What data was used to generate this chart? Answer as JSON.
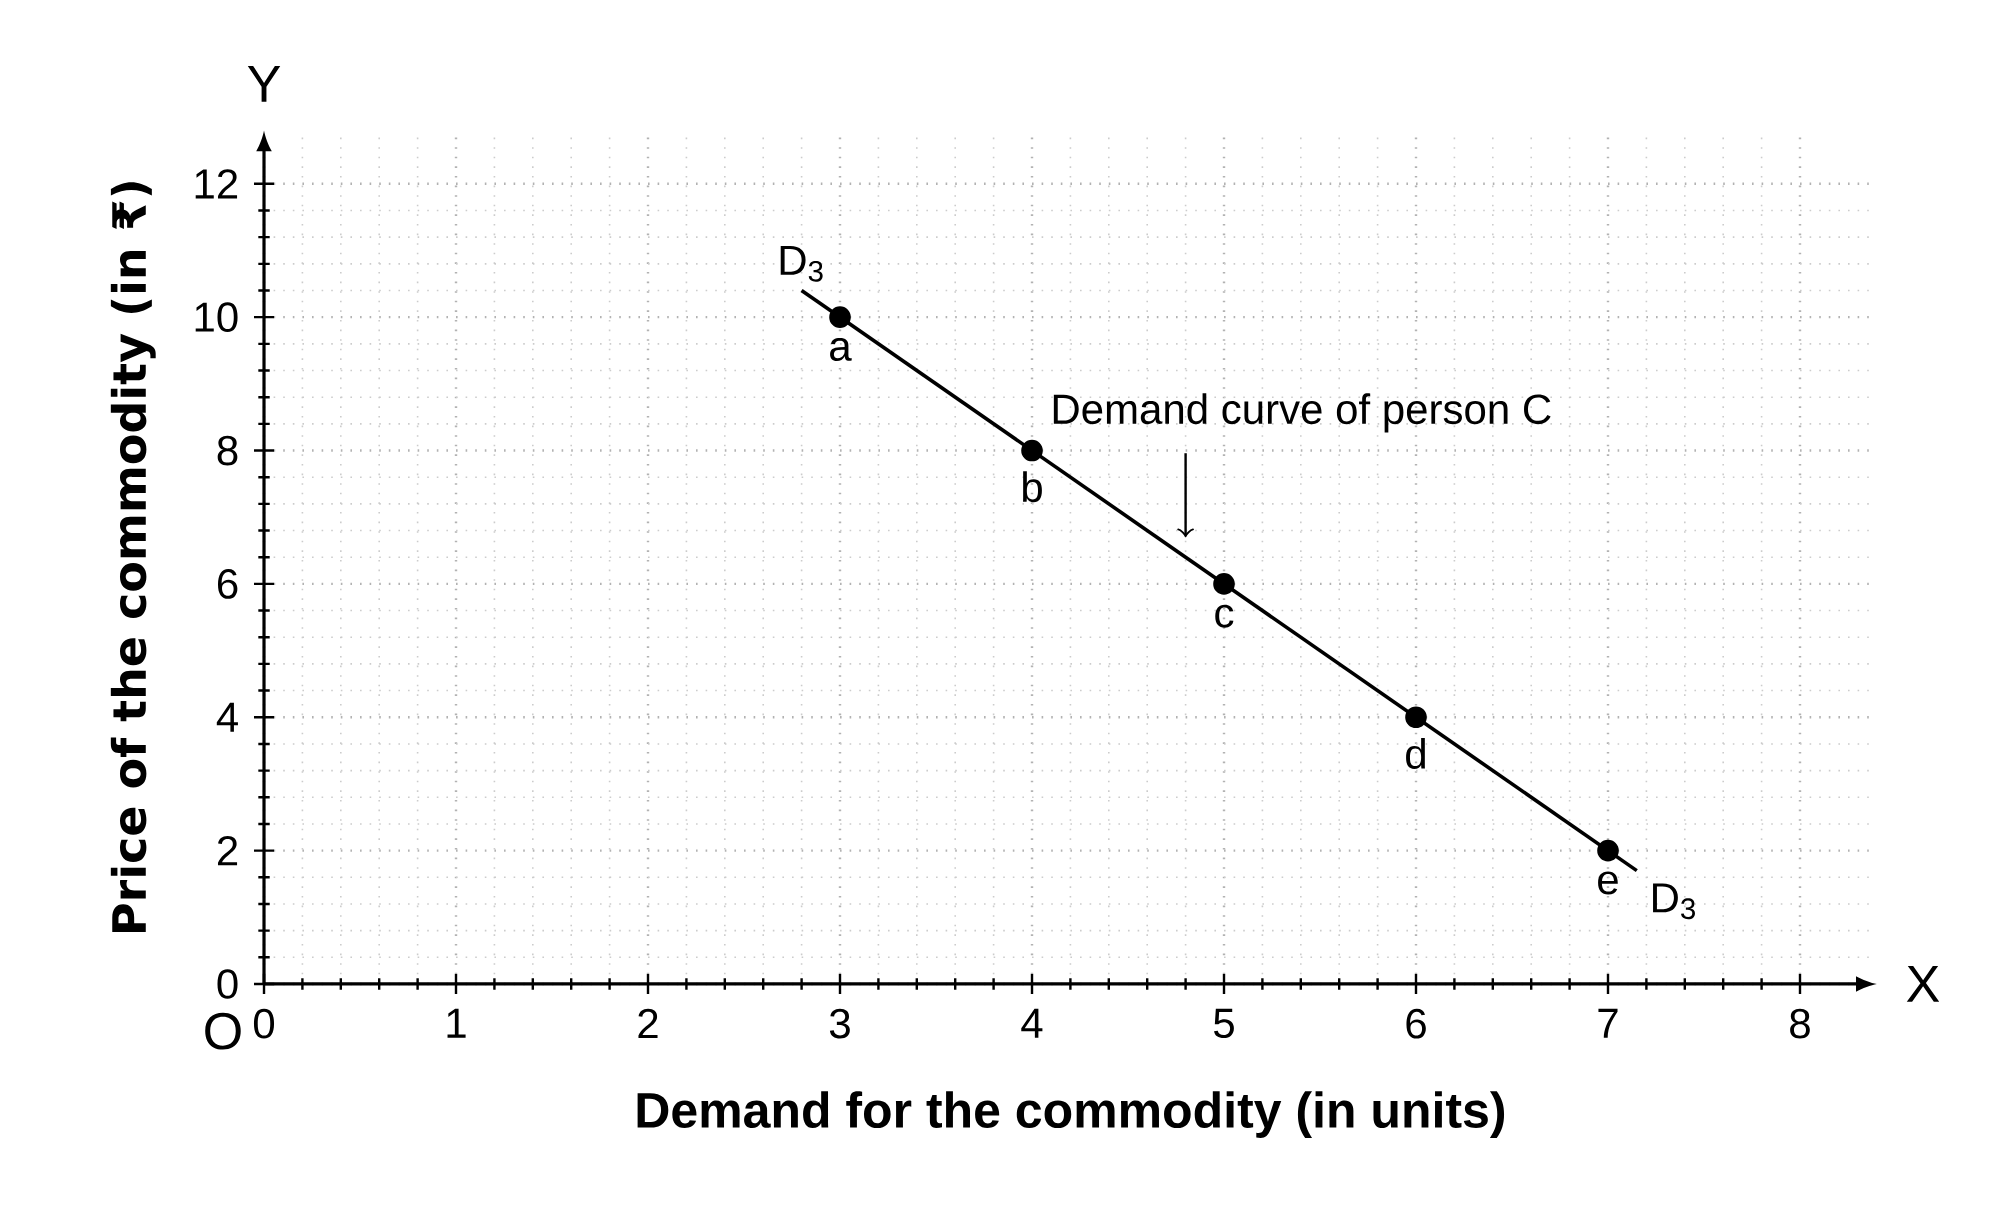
{
  "chart_data": {
    "type": "scatter",
    "xlabel": "Demand for the commodity (in units)",
    "ylabel": "Price of the commodity (in ₹)",
    "xlim": [
      0,
      8.4
    ],
    "ylim": [
      0,
      12.8
    ],
    "xticks": [
      0,
      1,
      2,
      3,
      4,
      5,
      6,
      7,
      8
    ],
    "yticks": [
      0,
      2,
      4,
      6,
      8,
      10,
      12
    ],
    "grid": true,
    "line_style": "solid",
    "series": [
      {
        "type": "line",
        "marker": "none",
        "color": "#000000",
        "x": [
          2.8,
          7.15
        ],
        "values": [
          10.4,
          1.7
        ]
      },
      {
        "marker": "circle",
        "color": "#000000",
        "x": [
          3,
          4,
          5,
          6,
          7
        ],
        "values": [
          10,
          8,
          6,
          4,
          2
        ]
      }
    ],
    "annotations": [
      {
        "text": "a",
        "x": 3,
        "y": 10
      },
      {
        "text": "b",
        "x": 4,
        "y": 8
      },
      {
        "text": "c",
        "x": 5,
        "y": 6
      },
      {
        "text": "d",
        "x": 6,
        "y": 4
      },
      {
        "text": "e",
        "x": 7,
        "y": 2
      },
      {
        "text": "D$_{3}$",
        "x": 2.8,
        "y": 10.4
      },
      {
        "text": "D$_{3}$",
        "x": 7.15,
        "y": 1.7
      },
      {
        "text": "Demand curve of person C",
        "x": 4.8,
        "y": 6.4
      },
      "X",
      "Y",
      "O"
    ]
  }
}
